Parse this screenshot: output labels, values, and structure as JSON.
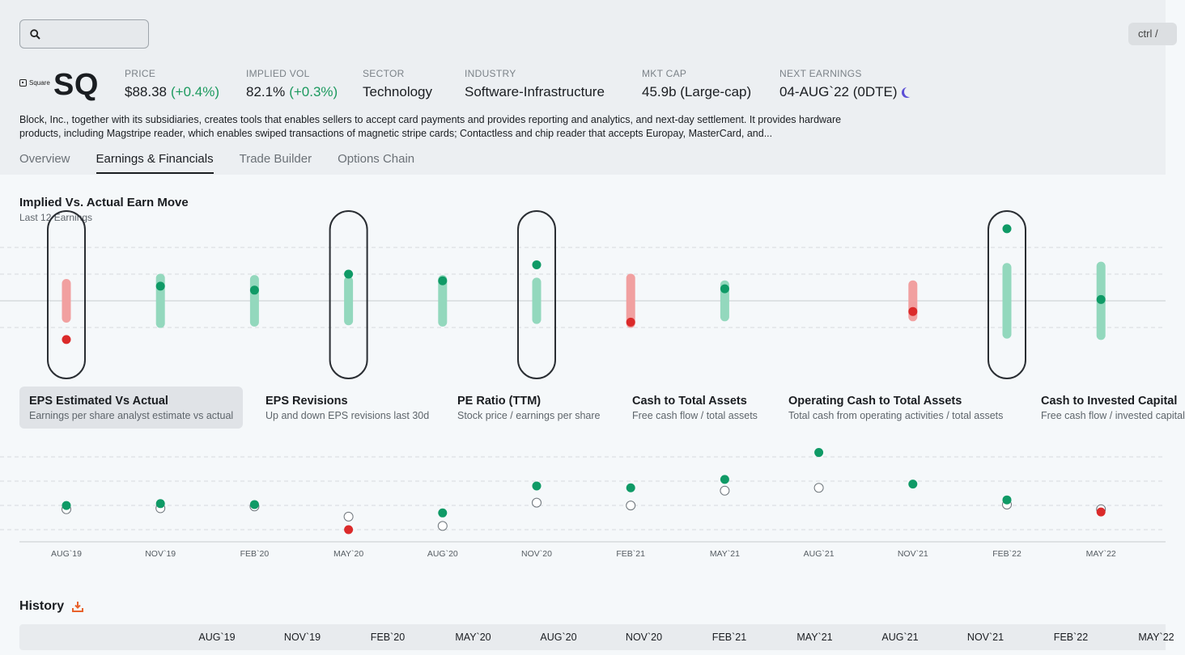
{
  "search": {
    "placeholder": "",
    "value": ""
  },
  "shortcut": "ctrl / ",
  "logo_text": "Square",
  "ticker": "SQ",
  "stats": {
    "price": {
      "label": "PRICE",
      "value": "$88.38",
      "change": "(+0.4%)"
    },
    "implied_vol": {
      "label": "IMPLIED VOL",
      "value": "82.1%",
      "change": "(+0.3%)"
    },
    "sector": {
      "label": "SECTOR",
      "value": "Technology"
    },
    "industry": {
      "label": "INDUSTRY",
      "value": "Software-Infrastructure"
    },
    "mkt_cap": {
      "label": "MKT CAP",
      "value": "45.9b (Large-cap)"
    },
    "next_earnings": {
      "label": "NEXT EARNINGS",
      "value": "04-AUG`22 (0DTE)"
    }
  },
  "description": "Block, Inc., together with its subsidiaries, creates tools that enables sellers to accept card payments and provides reporting and analytics, and next-day settlement. It provides hardware products, including Magstripe reader, which enables swiped transactions of magnetic stripe cards; Contactless and chip reader that accepts Europay, MasterCard, and...",
  "tabs": [
    "Overview",
    "Earnings & Financials",
    "Trade Builder",
    "Options Chain"
  ],
  "active_tab": 1,
  "earn_move": {
    "title": "Implied Vs. Actual Earn Move",
    "subtitle": "Last 12 Earnings"
  },
  "metrics": [
    {
      "title": "EPS Estimated Vs Actual",
      "sub": "Earnings per share analyst estimate vs actual"
    },
    {
      "title": "EPS Revisions",
      "sub": "Up and down EPS revisions last 30d"
    },
    {
      "title": "PE Ratio (TTM)",
      "sub": "Stock price / earnings per share"
    },
    {
      "title": "Cash to Total Assets",
      "sub": "Free cash flow / total assets"
    },
    {
      "title": "Operating Cash to Total Assets",
      "sub": "Total cash from operating activities / total assets"
    },
    {
      "title": "Cash to Invested Capital",
      "sub": "Free cash flow / invested capital"
    }
  ],
  "quarters": [
    "AUG`19",
    "NOV`19",
    "FEB`20",
    "MAY`20",
    "AUG`20",
    "NOV`20",
    "FEB`21",
    "MAY`21",
    "AUG`21",
    "NOV`21",
    "FEB`22",
    "MAY`22"
  ],
  "colors": {
    "up": "#0f9a66",
    "down": "#db2a2a",
    "range_up": "#93d8bd",
    "range_down": "#f1a0a0"
  },
  "chart_data": [
    {
      "type": "range-dot",
      "title": "Implied Vs. Actual Earn Move",
      "subtitle": "Last 12 Earnings",
      "categories": [
        "AUG`19",
        "NOV`19",
        "FEB`20",
        "MAY`20",
        "AUG`20",
        "NOV`20",
        "FEB`21",
        "MAY`21",
        "AUG`21",
        "NOV`21",
        "FEB`22",
        "MAY`22"
      ],
      "implied_range": [
        [
          -6.5,
          6.5
        ],
        [
          -8.5,
          8.5
        ],
        [
          -8,
          8
        ],
        [
          -7.5,
          7.5
        ],
        [
          -8,
          8
        ],
        [
          -7,
          7
        ],
        [
          -8.5,
          8.5
        ],
        [
          -6,
          6
        ],
        null,
        [
          -6,
          6
        ],
        [
          -12.5,
          12.5
        ],
        [
          -13,
          13
        ]
      ],
      "actual_move": [
        -14.5,
        5.5,
        4,
        10,
        7.5,
        13.5,
        -8,
        4.5,
        null,
        -4,
        27,
        0.5
      ],
      "highlighted": [
        0,
        3,
        5,
        10
      ],
      "ylim": [
        -20,
        30
      ]
    },
    {
      "type": "scatter",
      "title": "EPS Estimated Vs Actual",
      "categories": [
        "AUG`19",
        "NOV`19",
        "FEB`20",
        "MAY`20",
        "AUG`20",
        "NOV`20",
        "FEB`21",
        "MAY`21",
        "AUG`21",
        "NOV`21",
        "FEB`22",
        "MAY`22"
      ],
      "series": [
        {
          "values": [
            0.21,
            0.22,
            0.24,
            0.13,
            0.03,
            0.28,
            0.25,
            0.41,
            0.44,
            null,
            0.26,
            0.21
          ]
        },
        {
          "values": [
            0.25,
            0.27,
            0.26,
            -0.01,
            0.17,
            0.46,
            0.44,
            0.53,
            0.82,
            0.48,
            0.31,
            0.18
          ]
        }
      ],
      "ylim": [
        -0.15,
        1.0
      ]
    }
  ],
  "history": {
    "title": "History",
    "columns": [
      "AUG`19",
      "NOV`19",
      "FEB`20",
      "MAY`20",
      "AUG`20",
      "NOV`20",
      "FEB`21",
      "MAY`21",
      "AUG`21",
      "NOV`21",
      "FEB`22",
      "MAY`22"
    ]
  }
}
